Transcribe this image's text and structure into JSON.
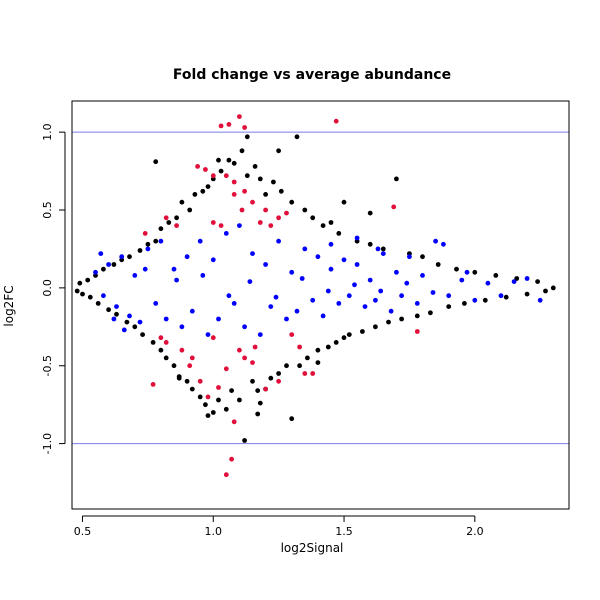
{
  "chart_data": {
    "type": "scatter",
    "title": "Fold change vs average abundance",
    "xlabel": "log2Signal",
    "ylabel": "log2FC",
    "xlim": [
      0.46,
      2.36
    ],
    "ylim": [
      -1.42,
      1.2
    ],
    "x_ticks": [
      0.5,
      1.0,
      1.5,
      2.0
    ],
    "x_tick_labels": [
      "0.5",
      "1.0",
      "1.5",
      "2.0"
    ],
    "y_ticks": [
      -1.0,
      -0.5,
      0.0,
      0.5,
      1.0
    ],
    "y_tick_labels": [
      "-1.0",
      "-0.5",
      "0.0",
      "0.5",
      "1.0"
    ],
    "reference_lines_y": [
      1.0,
      -1.0
    ],
    "reference_line_color": "#7b7bf0",
    "grid": false,
    "legend": "none",
    "series": [
      {
        "color": "#000000",
        "points": [
          [
            0.48,
            -0.02
          ],
          [
            0.49,
            0.03
          ],
          [
            0.5,
            -0.04
          ],
          [
            0.52,
            0.05
          ],
          [
            0.53,
            -0.06
          ],
          [
            0.55,
            0.08
          ],
          [
            0.56,
            -0.1
          ],
          [
            0.58,
            0.12
          ],
          [
            0.6,
            -0.14
          ],
          [
            0.62,
            0.15
          ],
          [
            0.63,
            -0.17
          ],
          [
            0.65,
            0.18
          ],
          [
            0.67,
            -0.22
          ],
          [
            0.68,
            0.2
          ],
          [
            0.7,
            -0.25
          ],
          [
            0.72,
            0.24
          ],
          [
            0.73,
            -0.3
          ],
          [
            0.75,
            0.28
          ],
          [
            0.77,
            -0.35
          ],
          [
            0.78,
            0.3
          ],
          [
            0.8,
            -0.4
          ],
          [
            0.8,
            0.38
          ],
          [
            0.82,
            -0.45
          ],
          [
            0.83,
            0.42
          ],
          [
            0.85,
            -0.5
          ],
          [
            0.86,
            0.45
          ],
          [
            0.87,
            -0.58
          ],
          [
            0.88,
            0.55
          ],
          [
            0.9,
            -0.6
          ],
          [
            0.91,
            0.5
          ],
          [
            0.92,
            -0.65
          ],
          [
            0.93,
            0.6
          ],
          [
            0.95,
            -0.7
          ],
          [
            0.96,
            0.62
          ],
          [
            0.97,
            -0.75
          ],
          [
            0.98,
            0.65
          ],
          [
            1.0,
            -0.8
          ],
          [
            1.0,
            0.7
          ],
          [
            1.02,
            -0.72
          ],
          [
            1.03,
            0.75
          ],
          [
            1.05,
            -0.78
          ],
          [
            1.06,
            0.82
          ],
          [
            1.07,
            -0.66
          ],
          [
            1.08,
            0.8
          ],
          [
            1.1,
            -0.72
          ],
          [
            1.11,
            0.88
          ],
          [
            1.12,
            -0.98
          ],
          [
            1.13,
            0.72
          ],
          [
            1.15,
            -0.6
          ],
          [
            1.16,
            0.78
          ],
          [
            1.17,
            -0.66
          ],
          [
            1.18,
            0.7
          ],
          [
            1.2,
            -0.65
          ],
          [
            1.2,
            0.6
          ],
          [
            1.22,
            -0.58
          ],
          [
            1.23,
            0.68
          ],
          [
            1.25,
            -0.55
          ],
          [
            1.26,
            0.62
          ],
          [
            1.28,
            -0.5
          ],
          [
            1.3,
            0.55
          ],
          [
            1.3,
            -0.84
          ],
          [
            1.32,
            0.97
          ],
          [
            1.33,
            -0.5
          ],
          [
            1.35,
            0.5
          ],
          [
            1.36,
            -0.45
          ],
          [
            1.38,
            0.45
          ],
          [
            1.4,
            -0.4
          ],
          [
            1.42,
            0.4
          ],
          [
            1.44,
            -0.38
          ],
          [
            1.45,
            0.42
          ],
          [
            1.47,
            -0.35
          ],
          [
            1.48,
            0.35
          ],
          [
            1.5,
            -0.32
          ],
          [
            1.5,
            0.55
          ],
          [
            1.52,
            -0.3
          ],
          [
            1.55,
            0.3
          ],
          [
            1.57,
            -0.28
          ],
          [
            1.6,
            0.28
          ],
          [
            1.62,
            -0.25
          ],
          [
            1.65,
            0.25
          ],
          [
            1.67,
            -0.22
          ],
          [
            1.7,
            0.7
          ],
          [
            1.72,
            -0.2
          ],
          [
            1.75,
            0.22
          ],
          [
            1.78,
            -0.18
          ],
          [
            1.8,
            0.2
          ],
          [
            1.83,
            -0.16
          ],
          [
            1.86,
            0.15
          ],
          [
            1.9,
            -0.12
          ],
          [
            1.93,
            0.12
          ],
          [
            1.96,
            -0.1
          ],
          [
            2.0,
            0.1
          ],
          [
            2.04,
            -0.08
          ],
          [
            2.08,
            0.08
          ],
          [
            2.12,
            -0.06
          ],
          [
            2.16,
            0.06
          ],
          [
            2.2,
            -0.04
          ],
          [
            2.24,
            0.04
          ],
          [
            2.27,
            -0.02
          ],
          [
            2.3,
            0.0
          ],
          [
            0.78,
            0.81
          ],
          [
            1.17,
            -0.81
          ],
          [
            1.13,
            0.97
          ],
          [
            0.87,
            -0.57
          ],
          [
            1.25,
            0.88
          ],
          [
            1.18,
            -0.74
          ],
          [
            1.02,
            0.82
          ],
          [
            1.4,
            -0.48
          ],
          [
            1.6,
            0.48
          ],
          [
            0.98,
            -0.82
          ]
        ]
      },
      {
        "color": "#0000ff",
        "points": [
          [
            0.55,
            0.1
          ],
          [
            0.58,
            -0.05
          ],
          [
            0.6,
            0.15
          ],
          [
            0.63,
            -0.12
          ],
          [
            0.65,
            0.2
          ],
          [
            0.68,
            -0.18
          ],
          [
            0.7,
            0.08
          ],
          [
            0.72,
            -0.22
          ],
          [
            0.75,
            0.25
          ],
          [
            0.78,
            -0.1
          ],
          [
            0.8,
            0.3
          ],
          [
            0.82,
            -0.2
          ],
          [
            0.85,
            0.12
          ],
          [
            0.88,
            -0.25
          ],
          [
            0.9,
            0.2
          ],
          [
            0.92,
            -0.15
          ],
          [
            0.95,
            0.3
          ],
          [
            0.98,
            -0.3
          ],
          [
            1.0,
            0.18
          ],
          [
            1.02,
            -0.2
          ],
          [
            1.05,
            0.35
          ],
          [
            1.08,
            -0.1
          ],
          [
            1.1,
            0.4
          ],
          [
            1.12,
            -0.25
          ],
          [
            1.15,
            0.22
          ],
          [
            1.18,
            -0.3
          ],
          [
            1.2,
            0.15
          ],
          [
            1.22,
            -0.12
          ],
          [
            1.25,
            0.3
          ],
          [
            1.28,
            -0.2
          ],
          [
            1.3,
            0.1
          ],
          [
            1.32,
            -0.15
          ],
          [
            1.35,
            0.25
          ],
          [
            1.38,
            -0.08
          ],
          [
            1.4,
            0.2
          ],
          [
            1.42,
            -0.18
          ],
          [
            1.45,
            0.12
          ],
          [
            1.48,
            -0.1
          ],
          [
            1.5,
            0.18
          ],
          [
            1.52,
            -0.05
          ],
          [
            1.55,
            0.15
          ],
          [
            1.58,
            -0.12
          ],
          [
            1.6,
            0.05
          ],
          [
            1.62,
            -0.08
          ],
          [
            1.65,
            0.22
          ],
          [
            1.68,
            -0.15
          ],
          [
            1.7,
            0.1
          ],
          [
            1.72,
            -0.05
          ],
          [
            1.75,
            0.2
          ],
          [
            1.78,
            -0.1
          ],
          [
            1.8,
            0.08
          ],
          [
            1.85,
            0.3
          ],
          [
            1.9,
            -0.05
          ],
          [
            1.95,
            0.05
          ],
          [
            2.0,
            -0.08
          ],
          [
            2.05,
            0.03
          ],
          [
            2.1,
            -0.05
          ],
          [
            2.15,
            0.04
          ],
          [
            2.2,
            0.06
          ],
          [
            2.25,
            -0.08
          ],
          [
            0.57,
            0.22
          ],
          [
            0.62,
            -0.2
          ],
          [
            0.66,
            -0.27
          ],
          [
            0.74,
            0.12
          ],
          [
            0.86,
            0.05
          ],
          [
            0.96,
            0.08
          ],
          [
            1.06,
            -0.05
          ],
          [
            1.14,
            0.04
          ],
          [
            1.24,
            -0.06
          ],
          [
            1.34,
            0.06
          ],
          [
            1.44,
            -0.02
          ],
          [
            1.54,
            0.02
          ],
          [
            1.64,
            -0.02
          ],
          [
            1.74,
            0.03
          ],
          [
            1.84,
            -0.03
          ],
          [
            1.88,
            0.28
          ],
          [
            1.45,
            0.28
          ],
          [
            1.55,
            0.32
          ],
          [
            1.63,
            0.25
          ],
          [
            1.97,
            0.1
          ]
        ]
      },
      {
        "color": "#e0103a",
        "points": [
          [
            1.03,
            1.04
          ],
          [
            1.06,
            1.05
          ],
          [
            1.1,
            1.1
          ],
          [
            1.12,
            1.03
          ],
          [
            1.47,
            1.07
          ],
          [
            0.94,
            0.78
          ],
          [
            0.97,
            0.76
          ],
          [
            1.0,
            0.72
          ],
          [
            1.05,
            0.72
          ],
          [
            1.08,
            0.68
          ],
          [
            1.08,
            0.6
          ],
          [
            1.12,
            0.62
          ],
          [
            1.15,
            0.55
          ],
          [
            1.2,
            0.5
          ],
          [
            1.25,
            0.45
          ],
          [
            0.82,
            0.45
          ],
          [
            1.69,
            0.52
          ],
          [
            1.05,
            -1.2
          ],
          [
            1.07,
            -1.1
          ],
          [
            1.12,
            -0.45
          ],
          [
            1.15,
            -0.48
          ],
          [
            1.2,
            -0.65
          ],
          [
            1.25,
            -0.6
          ],
          [
            1.3,
            -0.3
          ],
          [
            1.38,
            -0.55
          ],
          [
            0.77,
            -0.62
          ],
          [
            0.82,
            -0.35
          ],
          [
            0.92,
            -0.45
          ],
          [
            0.95,
            -0.6
          ],
          [
            0.98,
            -0.7
          ],
          [
            1.0,
            -0.32
          ],
          [
            1.05,
            -0.52
          ],
          [
            1.08,
            -0.86
          ],
          [
            1.02,
            -0.64
          ],
          [
            1.1,
            -0.4
          ],
          [
            1.16,
            -0.38
          ],
          [
            1.35,
            -0.55
          ],
          [
            1.78,
            -0.28
          ],
          [
            0.74,
            0.35
          ],
          [
            0.86,
            0.4
          ],
          [
            1.0,
            0.42
          ],
          [
            1.22,
            0.4
          ],
          [
            1.28,
            0.48
          ],
          [
            1.03,
            0.4
          ],
          [
            0.91,
            -0.5
          ],
          [
            0.88,
            -0.4
          ],
          [
            1.18,
            0.42
          ],
          [
            1.33,
            -0.38
          ],
          [
            0.8,
            -0.32
          ],
          [
            1.11,
            0.5
          ]
        ]
      }
    ]
  }
}
